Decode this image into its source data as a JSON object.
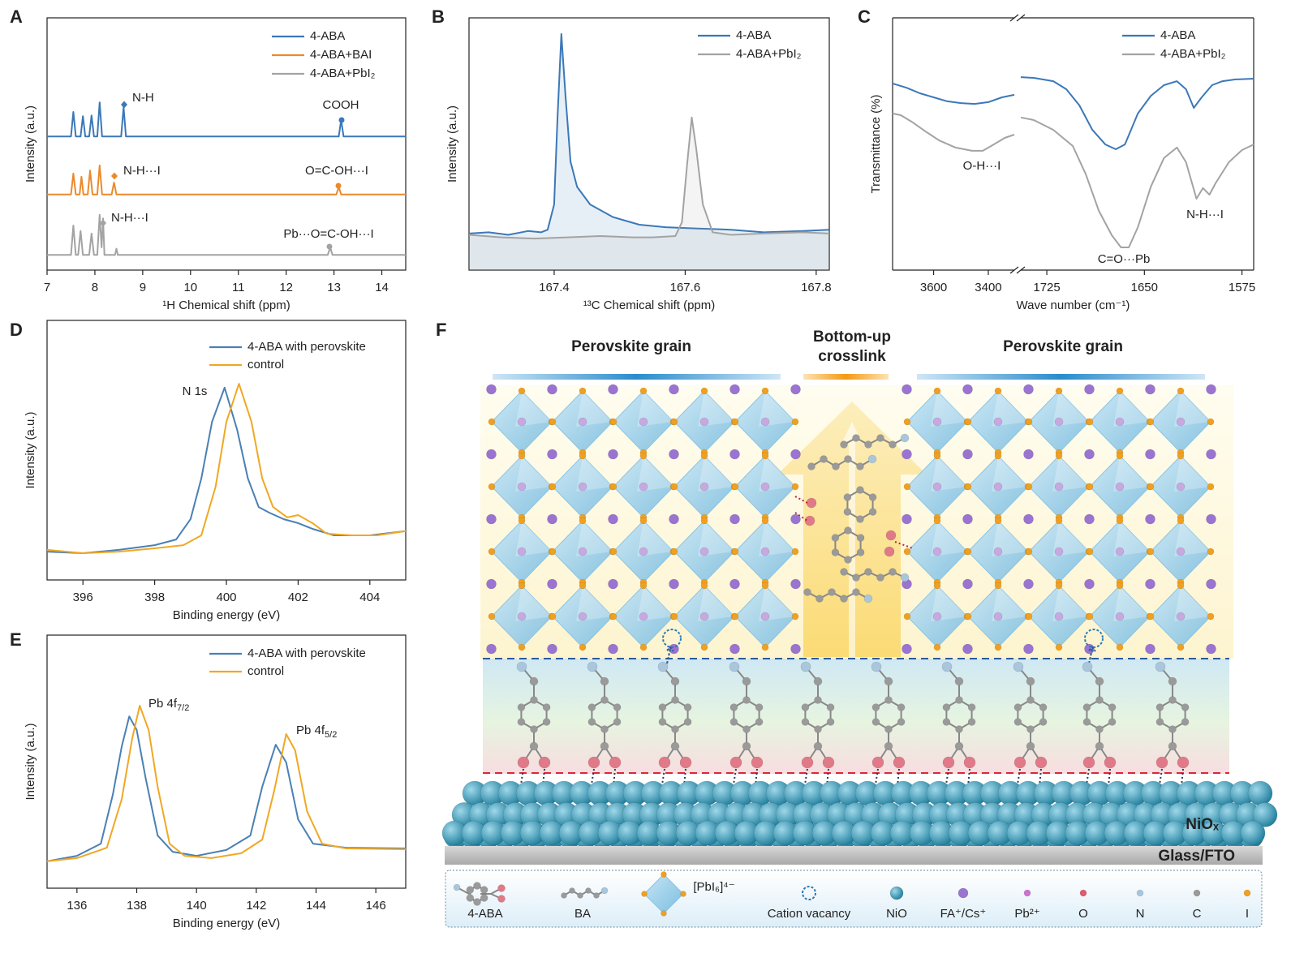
{
  "chart_data": [
    {
      "panel": "A",
      "type": "line",
      "x_label": "¹H Chemical shift (ppm)",
      "y_label": "Intensity (a.u.)",
      "xlim": [
        7,
        14.5
      ],
      "xticks": [
        7,
        8,
        9,
        10,
        11,
        12,
        13,
        14
      ],
      "ylim": [
        0,
        10
      ],
      "legend": "upper right",
      "series": [
        {
          "name": "4-ABA",
          "color": "#3b78b8",
          "x": [
            7,
            7.5,
            7.55,
            7.6,
            7.7,
            7.75,
            7.8,
            7.88,
            7.93,
            7.98,
            8.05,
            8.1,
            8.15,
            8.55,
            8.6,
            8.65,
            13.1,
            13.15,
            13.2,
            14.5
          ],
          "values": [
            5.3,
            5.3,
            6.27,
            5.3,
            5.3,
            6.1,
            5.3,
            5.3,
            6.13,
            5.3,
            5.3,
            6.65,
            5.3,
            5.3,
            6.46,
            5.3,
            5.3,
            5.95,
            5.3,
            5.3
          ]
        },
        {
          "name": "4-ABA+BAI",
          "color": "#ea8a2c",
          "x": [
            7,
            7.5,
            7.55,
            7.6,
            7.68,
            7.72,
            7.76,
            7.85,
            7.9,
            7.95,
            8.05,
            8.1,
            8.15,
            8.35,
            8.4,
            8.45,
            13.05,
            13.1,
            13.15,
            14.5
          ],
          "values": [
            3,
            3,
            3.83,
            3,
            3,
            3.7,
            3,
            3,
            3.95,
            3,
            3,
            4.15,
            3,
            3,
            3.47,
            3,
            3,
            3.3,
            3,
            3
          ]
        },
        {
          "name": "4-ABA+PbI₂",
          "color": "#a3a3a3",
          "x": [
            7,
            7.5,
            7.55,
            7.6,
            7.65,
            7.7,
            7.75,
            7.88,
            7.93,
            7.98,
            8.05,
            8.1,
            8.14,
            8.17,
            8.2,
            8.42,
            8.45,
            8.48,
            12.87,
            12.92,
            12.97,
            14.5
          ],
          "values": [
            0.6,
            0.6,
            1.77,
            0.6,
            0.6,
            1.55,
            0.6,
            0.6,
            1.45,
            0.6,
            0.6,
            2.19,
            0.9,
            2.05,
            0.6,
            0.6,
            0.85,
            0.6,
            0.6,
            0.9,
            0.6,
            0.6
          ]
        }
      ],
      "annotations": [
        "N-H",
        "COOH",
        "N-H···I",
        "O=C-OH···I",
        "N-H···I",
        "Pb···O=C-OH···I"
      ]
    },
    {
      "panel": "B",
      "type": "line",
      "x_label": "¹³C Chemical shift (ppm)",
      "y_label": "Intensity (a.u.)",
      "xlim": [
        167.27,
        167.82
      ],
      "xticks": [
        167.4,
        167.6,
        167.8
      ],
      "ylim": [
        0,
        10
      ],
      "legend": "upper right",
      "fill": true,
      "series": [
        {
          "name": "4-ABA",
          "color": "#3b78b8",
          "x": [
            167.27,
            167.3,
            167.33,
            167.36,
            167.38,
            167.39,
            167.4,
            167.405,
            167.411,
            167.417,
            167.425,
            167.435,
            167.455,
            167.49,
            167.53,
            167.57,
            167.62,
            167.67,
            167.72,
            167.78,
            167.82
          ],
          "values": [
            1.45,
            1.5,
            1.4,
            1.55,
            1.5,
            1.6,
            2.6,
            6,
            9.36,
            7,
            4.3,
            3.3,
            2.6,
            2.1,
            1.8,
            1.7,
            1.65,
            1.6,
            1.5,
            1.55,
            1.6
          ]
        },
        {
          "name": "4-ABA+PbI₂",
          "color": "#a3a3a3",
          "x": [
            167.27,
            167.32,
            167.37,
            167.42,
            167.47,
            167.52,
            167.55,
            167.585,
            167.595,
            167.603,
            167.61,
            167.617,
            167.627,
            167.642,
            167.67,
            167.72,
            167.78,
            167.82
          ],
          "values": [
            1.4,
            1.3,
            1.25,
            1.3,
            1.35,
            1.3,
            1.3,
            1.35,
            1.9,
            4.2,
            6.05,
            4.8,
            2.6,
            1.5,
            1.4,
            1.45,
            1.5,
            1.45
          ]
        }
      ],
      "annotations": []
    },
    {
      "panel": "C",
      "type": "line",
      "x_label": "Wave number (cm⁻¹)",
      "y_label": "Transmittance (%)",
      "ylim": [
        0,
        10
      ],
      "legend": "upper right",
      "segments": [
        {
          "xlim": [
            3750,
            3305
          ],
          "xticks": [
            3600,
            3400
          ]
        },
        {
          "xlim": [
            1745,
            1566
          ],
          "xticks": [
            1725,
            1650,
            1575
          ]
        }
      ],
      "series": [
        {
          "name": "4-ABA",
          "color": "#3b78b8",
          "segments": [
            {
              "x": [
                3750,
                3700,
                3650,
                3600,
                3550,
                3500,
                3450,
                3400,
                3350,
                3305
              ],
              "values": [
                7.4,
                7.23,
                7.01,
                6.85,
                6.69,
                6.62,
                6.59,
                6.66,
                6.85,
                6.95
              ]
            },
            {
              "x": [
                1745,
                1735,
                1720,
                1710,
                1700,
                1690,
                1680,
                1672,
                1665,
                1655,
                1645,
                1635,
                1625,
                1618,
                1612,
                1606,
                1598,
                1590,
                1580,
                1566
              ],
              "values": [
                7.65,
                7.62,
                7.49,
                7.17,
                6.53,
                5.56,
                4.98,
                4.79,
                4.98,
                6.21,
                6.91,
                7.33,
                7.49,
                7.17,
                6.43,
                6.85,
                7.33,
                7.49,
                7.56,
                7.59
              ]
            }
          ]
        },
        {
          "name": "4-ABA+PbI₂",
          "color": "#a3a3a3",
          "segments": [
            {
              "x": [
                3750,
                3720,
                3680,
                3630,
                3580,
                3520,
                3460,
                3420,
                3380,
                3340,
                3305
              ],
              "values": [
                6.21,
                6.14,
                5.88,
                5.5,
                5.14,
                4.86,
                4.73,
                4.73,
                4.98,
                5.24,
                5.37
              ]
            },
            {
              "x": [
                1745,
                1735,
                1720,
                1705,
                1695,
                1685,
                1675,
                1668,
                1662,
                1655,
                1645,
                1635,
                1625,
                1618,
                1610,
                1605,
                1600,
                1595,
                1585,
                1575,
                1566
              ],
              "values": [
                6.05,
                5.95,
                5.56,
                4.92,
                3.79,
                2.35,
                1.38,
                0.9,
                0.9,
                1.7,
                3.31,
                4.44,
                4.86,
                4.28,
                2.83,
                3.25,
                2.99,
                3.47,
                4.28,
                4.76,
                4.98
              ]
            }
          ]
        }
      ],
      "annotations": [
        "O-H···I",
        "C=O···Pb",
        "N-H···I"
      ]
    },
    {
      "panel": "D",
      "type": "line",
      "x_label": "Binding energy (eV)",
      "y_label": "Intensity (a.u.)",
      "xlim": [
        395,
        405
      ],
      "xticks": [
        396,
        398,
        400,
        402,
        404
      ],
      "ylim": [
        0,
        10
      ],
      "legend": "upper right",
      "series": [
        {
          "name": "4-ABA with perovskite",
          "color": "#4a80b4",
          "x": [
            395,
            396,
            397,
            398,
            398.6,
            399,
            399.3,
            399.6,
            399.95,
            400.3,
            400.6,
            400.9,
            401.2,
            401.6,
            402,
            402.4,
            403,
            404,
            405
          ],
          "values": [
            1.09,
            1.03,
            1.16,
            1.34,
            1.56,
            2.34,
            3.91,
            6.09,
            7.41,
            5.78,
            3.91,
            2.81,
            2.59,
            2.34,
            2.19,
            1.97,
            1.72,
            1.72,
            1.88
          ]
        },
        {
          "name": "control",
          "color": "#f0a824",
          "x": [
            395,
            396,
            397,
            398,
            398.8,
            399.3,
            399.7,
            400,
            400.35,
            400.7,
            401,
            401.3,
            401.7,
            402,
            402.4,
            402.8,
            403.5,
            404.2,
            405
          ],
          "values": [
            1.16,
            1.03,
            1.09,
            1.22,
            1.34,
            1.72,
            3.59,
            6.09,
            7.56,
            6.09,
            3.91,
            2.81,
            2.41,
            2.5,
            2.19,
            1.78,
            1.72,
            1.72,
            1.88
          ]
        }
      ],
      "annotations": [
        "N 1s"
      ]
    },
    {
      "panel": "E",
      "type": "line",
      "x_label": "Binding energy (eV)",
      "y_label": "Intensity (a.u.)",
      "xlim": [
        135,
        147
      ],
      "xticks": [
        136,
        138,
        140,
        142,
        144,
        146
      ],
      "ylim": [
        0,
        10
      ],
      "legend": "upper right",
      "series": [
        {
          "name": "4-ABA with perovskite",
          "color": "#4a80b4",
          "x": [
            135,
            136,
            136.8,
            137.2,
            137.5,
            137.75,
            138,
            138.3,
            138.7,
            139.2,
            140,
            141,
            141.8,
            142.2,
            142.65,
            143,
            143.4,
            143.9,
            145,
            147
          ],
          "values": [
            1.06,
            1.28,
            1.76,
            3.69,
            5.61,
            6.79,
            6.25,
            4.33,
            2.08,
            1.44,
            1.28,
            1.51,
            2.08,
            4.01,
            5.67,
            4.97,
            2.72,
            1.76,
            1.6,
            1.57
          ]
        },
        {
          "name": "control",
          "color": "#f0a824",
          "x": [
            135,
            136,
            137,
            137.5,
            137.85,
            138.1,
            138.4,
            138.7,
            139.1,
            139.6,
            140.5,
            141.5,
            142.2,
            142.6,
            143,
            143.3,
            143.7,
            144.2,
            145,
            147
          ],
          "values": [
            1.06,
            1.19,
            1.6,
            3.53,
            5.93,
            7.21,
            6.25,
            4.01,
            1.76,
            1.28,
            1.19,
            1.38,
            1.92,
            3.85,
            6.09,
            5.45,
            3.04,
            1.76,
            1.57,
            1.54
          ]
        }
      ],
      "annotations": [
        {
          "text": "Pb 4f",
          "subscript": "7/2"
        },
        {
          "text": "Pb 4f",
          "subscript": "5/2"
        }
      ]
    }
  ],
  "diagram": {
    "panel": "F",
    "grain_left": "Perovskite grain",
    "crosslink": [
      "Bottom-up",
      "crosslink"
    ],
    "grain_right": "Perovskite grain",
    "layer": "NiOₓ",
    "substrate": "Glass/FTO",
    "legend": [
      "4-ABA",
      "BA",
      "[PbI₆]⁴⁻",
      "Cation vacancy",
      "NiO",
      "FA⁺/Cs⁺",
      "Pb²⁺",
      "O",
      "N",
      "C",
      "I"
    ]
  }
}
